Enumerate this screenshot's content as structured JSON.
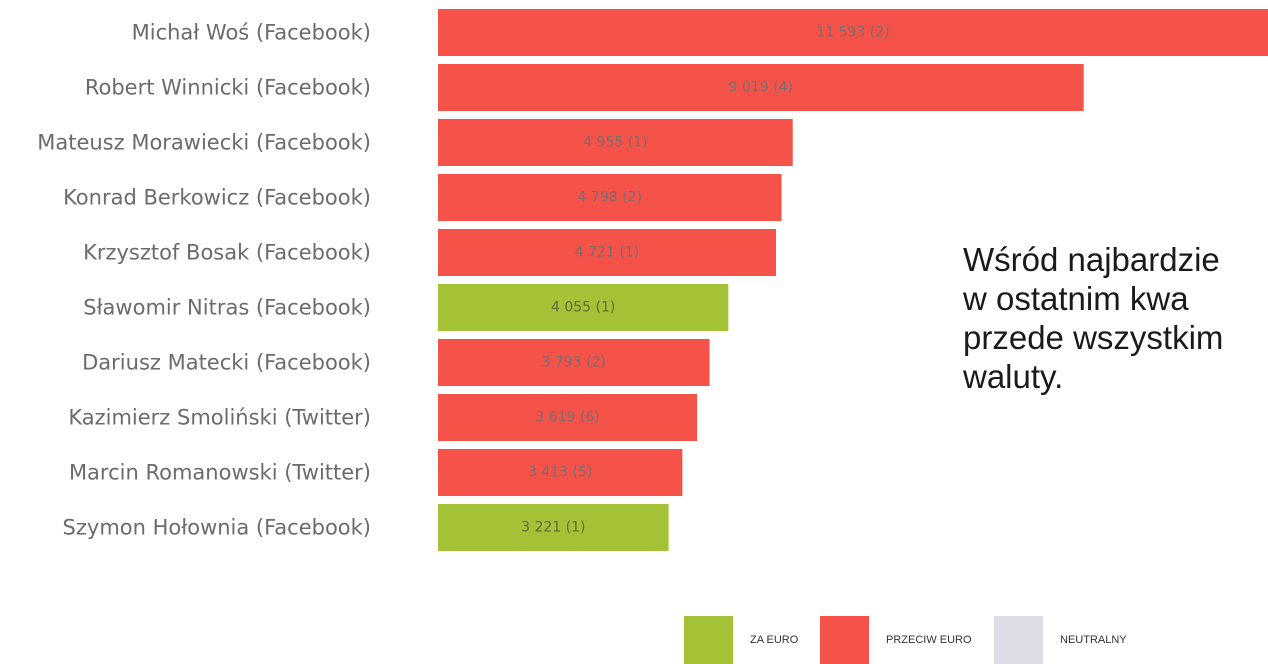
{
  "chart_data": {
    "type": "bar",
    "orientation": "horizontal",
    "categories": [
      "Michał Woś (Facebook)",
      "Robert Winnicki (Facebook)",
      "Mateusz Morawiecki (Facebook)",
      "Konrad Berkowicz (Facebook)",
      "Krzysztof Bosak (Facebook)",
      "Sławomir Nitras (Facebook)",
      "Dariusz Matecki (Facebook)",
      "Kazimierz Smoliński (Twitter)",
      "Marcin Romanowski (Twitter)",
      "Szymon Hołownia (Facebook)"
    ],
    "values": [
      11593,
      9019,
      4955,
      4798,
      4721,
      4055,
      3793,
      3619,
      3413,
      3221
    ],
    "counts": [
      2,
      4,
      1,
      2,
      1,
      1,
      2,
      6,
      5,
      1
    ],
    "data_labels": [
      "11 593 (2)",
      "9 019 (4)",
      "4 955 (1)",
      "4 798 (2)",
      "4 721 (1)",
      "4 055 (1)",
      "3 793 (2)",
      "3 619 (6)",
      "3 413 (5)",
      "3 221 (1)"
    ],
    "stance": [
      "przeciw",
      "przeciw",
      "przeciw",
      "przeciw",
      "przeciw",
      "za",
      "przeciw",
      "przeciw",
      "przeciw",
      "za"
    ],
    "xlim": [
      0,
      11593
    ],
    "legend": {
      "position": "bottom",
      "items": [
        {
          "key": "za",
          "label": "ZA EURO",
          "color": "#a5c136"
        },
        {
          "key": "przeciw",
          "label": "PRZECIW EURO",
          "color": "#f5534a"
        },
        {
          "key": "neutralny",
          "label": "NEUTRALNY",
          "color": "#dcdde6"
        }
      ]
    },
    "grid": false
  },
  "overlay_text": {
    "lines": [
      "Wśród najbardzie",
      "w ostatnim kwa",
      "przede wszystkim",
      "waluty."
    ]
  }
}
